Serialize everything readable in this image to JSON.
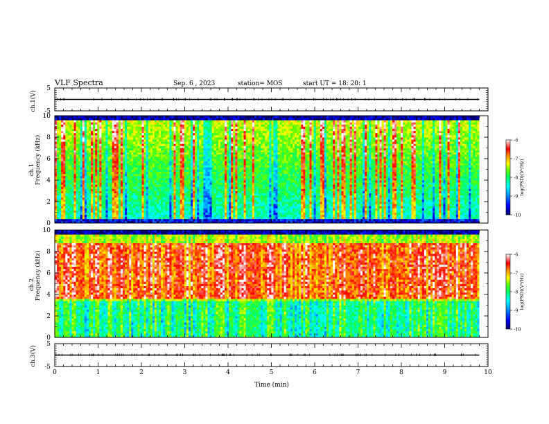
{
  "header": {
    "title": "VLF Spectra",
    "date": "Sep. 6 , 2023",
    "station": "station= MOS",
    "start": "start UT = 18: 20: 1"
  },
  "chart_data": [
    {
      "type": "line",
      "panel": "ch1-voltage",
      "ylabel": "ch.1(V)",
      "ylim": [
        -5,
        5
      ],
      "yticks": [
        "5",
        "-5"
      ],
      "xlim": [
        0,
        10
      ],
      "series": [
        {
          "x": [
            0,
            9.8
          ],
          "y": [
            0,
            0
          ],
          "color": "#000000"
        }
      ]
    },
    {
      "type": "heatmap",
      "panel": "ch1-spectrogram",
      "ylabel": "Frequency (kHz)",
      "ylabel_channel": "ch.1",
      "ylim": [
        0,
        10
      ],
      "yticks": [
        "0",
        "2",
        "4",
        "6",
        "8",
        "10"
      ],
      "xlim": [
        0,
        10
      ],
      "data_end_min": 9.8,
      "colorbar": {
        "label": "log(PSD)(V²/Hz)",
        "range": [
          -10,
          -6
        ],
        "ticks": [
          "-6",
          "-7",
          "-8",
          "-9",
          "-10"
        ]
      }
    },
    {
      "type": "heatmap",
      "panel": "ch2-spectrogram",
      "ylabel": "Frequency (kHz)",
      "ylabel_channel": "ch.2",
      "ylim": [
        0,
        10
      ],
      "yticks": [
        "0",
        "2",
        "4",
        "6",
        "8",
        "10"
      ],
      "xlim": [
        0,
        10
      ],
      "data_end_min": 9.8,
      "colorbar": {
        "label": "log(PSD)(V²/Hz)",
        "range": [
          -10,
          -6
        ],
        "ticks": [
          "-6",
          "-7",
          "-8",
          "-9",
          "-10"
        ]
      }
    },
    {
      "type": "line",
      "panel": "ch3-voltage",
      "ylabel": "ch.3(V)",
      "ylim": [
        -5,
        5
      ],
      "yticks": [
        "5",
        "-5"
      ],
      "xlim": [
        0,
        10
      ],
      "xlabel": "Time (min)",
      "xticks": [
        "0",
        "1",
        "2",
        "3",
        "4",
        "5",
        "6",
        "7",
        "8",
        "9",
        "10"
      ],
      "series": [
        {
          "x": [
            0,
            9.8
          ],
          "y": [
            0,
            0
          ],
          "color": "#000000"
        }
      ]
    }
  ],
  "colors": {
    "colormap": [
      "#000066",
      "#0000ff",
      "#00a0ff",
      "#00ffff",
      "#00ff66",
      "#66ff00",
      "#ffff00",
      "#ff9900",
      "#ff0000",
      "#ffffff"
    ]
  }
}
